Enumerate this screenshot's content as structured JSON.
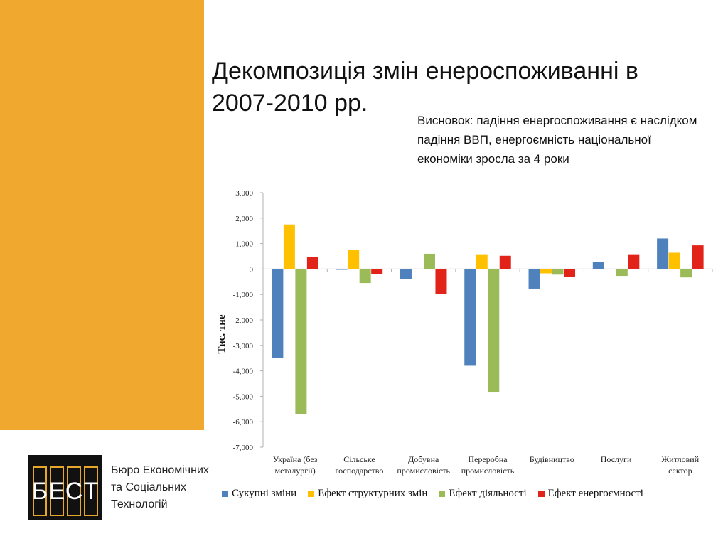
{
  "slide": {
    "title": " Декомпозиція змін енероспоживанні в 2007-2010 рр.",
    "conclusion": "Висновок: падіння енергоспоживання є наслідком падіння ВВП, енергоємність національної економіки зросла за 4 роки"
  },
  "logo": {
    "letters": [
      "Б",
      "Е",
      "С",
      "Т"
    ],
    "lines": [
      "Бюро Економічних",
      "та Соціальних",
      "Технологій"
    ],
    "accent_color": "#e6a72a"
  },
  "chart_data": {
    "type": "bar",
    "title": "",
    "xlabel": "",
    "ylabel": "Тис. тне",
    "ylim": [
      -7000,
      3000
    ],
    "yticks": [
      3000,
      2000,
      1000,
      0,
      -1000,
      -2000,
      -3000,
      -4000,
      -5000,
      -6000,
      -7000
    ],
    "ytick_labels": [
      "3,000",
      "2,000",
      "1,000",
      "0",
      "-1,000",
      "-2,000",
      "-3,000",
      "-4,000",
      "-5,000",
      "-6,000",
      "-7,000"
    ],
    "categories": [
      [
        "Україна (без",
        "металургії)"
      ],
      [
        "Сільське",
        "господарство"
      ],
      [
        "Добувна",
        "промисловість"
      ],
      [
        "Переробна",
        "промисловість"
      ],
      [
        "Будівництво"
      ],
      [
        "Послуги"
      ],
      [
        "Житловий",
        "сектор"
      ]
    ],
    "series": [
      {
        "name": "Сукупні зміни",
        "color": "#4f81bd",
        "values": [
          -3500,
          -30,
          -380,
          -3800,
          -770,
          280,
          1200
        ]
      },
      {
        "name": "Ефект структурних змін",
        "color": "#ffc000",
        "values": [
          1750,
          750,
          0,
          580,
          -170,
          0,
          640
        ]
      },
      {
        "name": "Ефект діяльності",
        "color": "#9bbb59",
        "values": [
          -5700,
          -550,
          600,
          -4850,
          -220,
          -270,
          -330
        ]
      },
      {
        "name": "Ефект енергоємності",
        "color": "#e2231a",
        "values": [
          480,
          -200,
          -970,
          520,
          -320,
          580,
          930
        ]
      }
    ],
    "legend_position": "bottom",
    "grid": false
  }
}
